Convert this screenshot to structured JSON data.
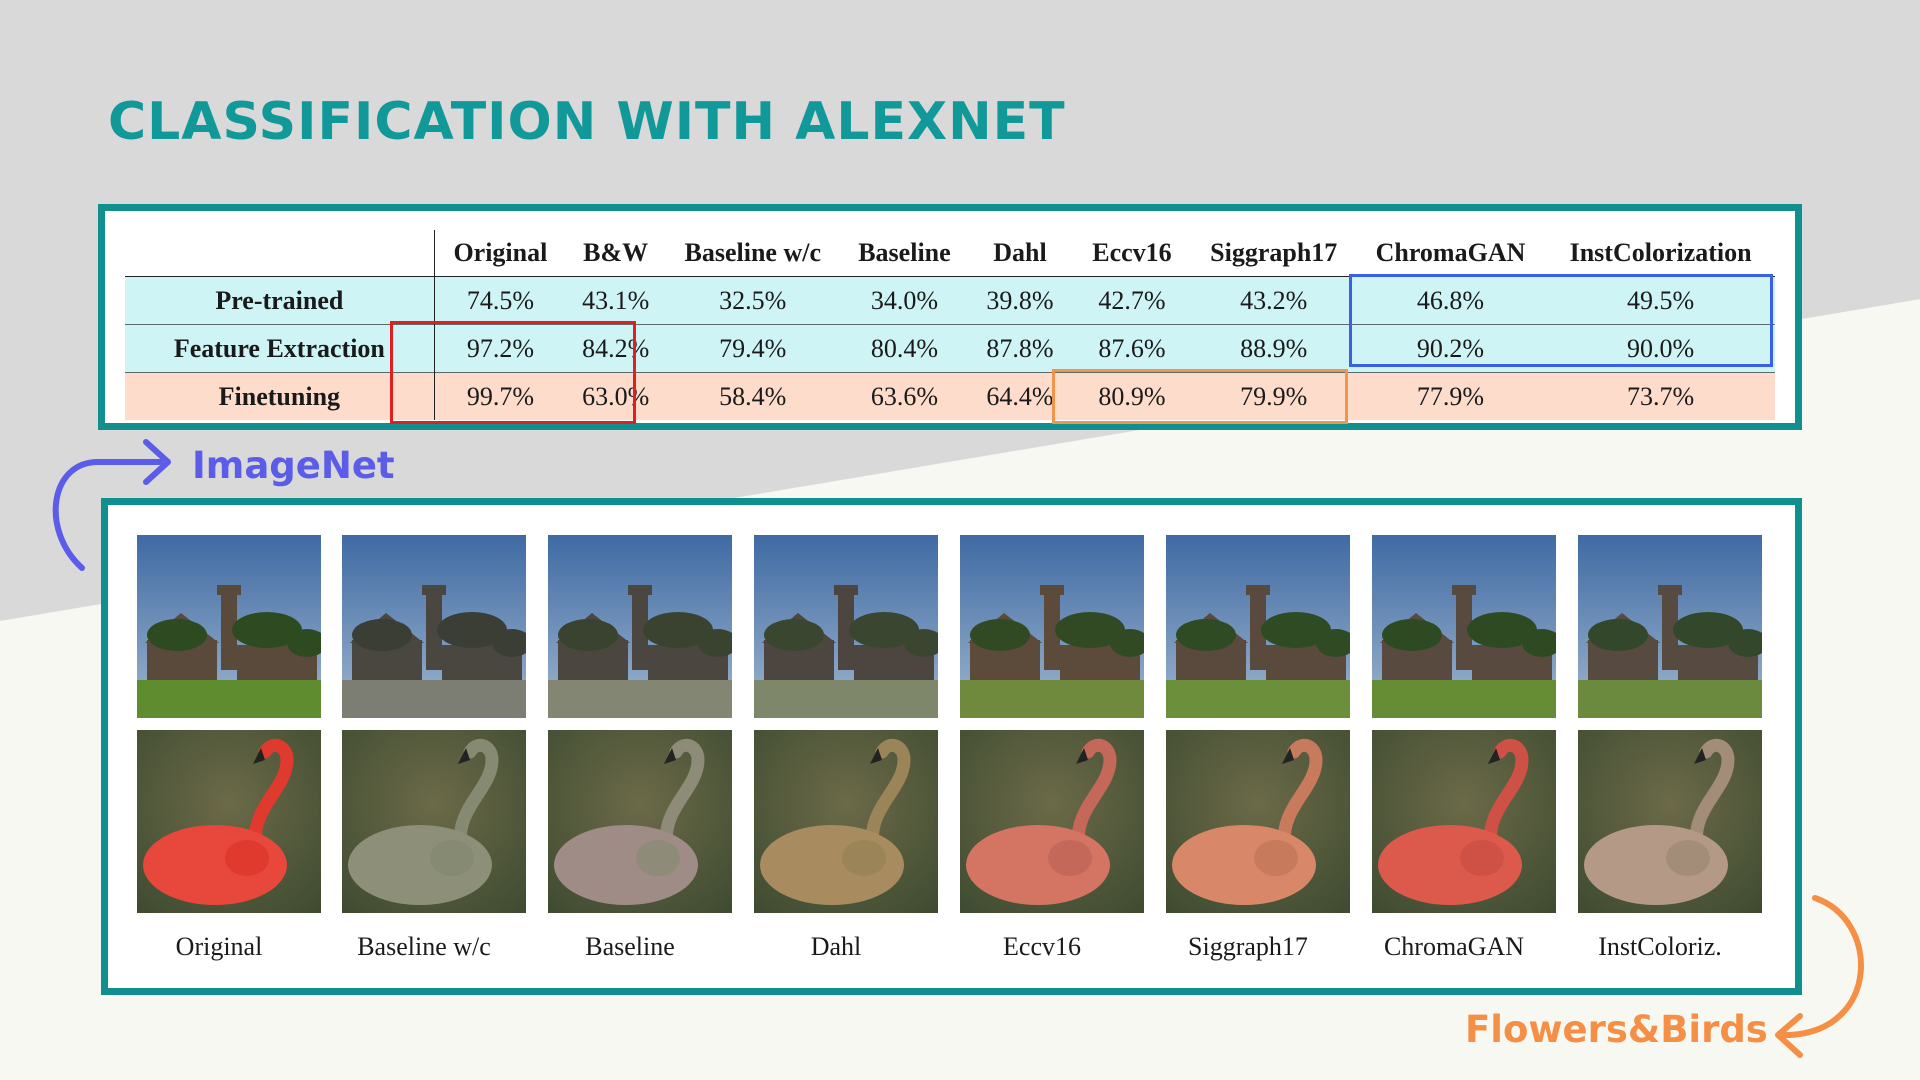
{
  "slide": {
    "title": "CLASSIFICATION WITH ALEXNET"
  },
  "table": {
    "columns": [
      "",
      "Original",
      "B&W",
      "Baseline w/c",
      "Baseline",
      "Dahl",
      "Eccv16",
      "Siggraph17",
      "ChromaGAN",
      "InstColorization"
    ],
    "rows": [
      {
        "label": "Pre-trained",
        "values": [
          "74.5%",
          "43.1%",
          "32.5%",
          "34.0%",
          "39.8%",
          "42.7%",
          "43.2%",
          "46.8%",
          "49.5%"
        ]
      },
      {
        "label": "Feature Extraction",
        "values": [
          "97.2%",
          "84.2%",
          "79.4%",
          "80.4%",
          "87.8%",
          "87.6%",
          "88.9%",
          "90.2%",
          "90.0%"
        ]
      },
      {
        "label": "Finetuning",
        "values": [
          "99.7%",
          "63.0%",
          "58.4%",
          "63.6%",
          "64.4%",
          "80.9%",
          "79.9%",
          "77.9%",
          "73.7%"
        ]
      }
    ]
  },
  "datasets": {
    "imagenet_label": "ImageNet",
    "flowers_label": "Flowers&Birds"
  },
  "gallery": {
    "captions": [
      "Original",
      "Baseline w/c",
      "Baseline",
      "Dahl",
      "Eccv16",
      "Siggraph17",
      "ChromaGAN",
      "InstColoriz."
    ],
    "images": {
      "castle": [
        {
          "sky": "#3f6aa3",
          "sky2": "#9fb6cf",
          "grass": "#5e8c2e",
          "bldg": "#5a4a3c",
          "tree": "#2d4a20"
        },
        {
          "sky": "#8c96a0",
          "sky2": "#b8bfc6",
          "grass": "#7c7e74",
          "bldg": "#4a4640",
          "tree": "#3a3e34"
        },
        {
          "sky": "#6d8aa6",
          "sky2": "#b8c2ca",
          "grass": "#828672",
          "bldg": "#4c4640",
          "tree": "#39432f"
        },
        {
          "sky": "#8893a0",
          "sky2": "#c0c6c9",
          "grass": "#7f876a",
          "bldg": "#4c4540",
          "tree": "#3b4631"
        },
        {
          "sky": "#5a78a8",
          "sky2": "#e9cb98",
          "grass": "#6f8a3c",
          "bldg": "#5c4a3a",
          "tree": "#314a24"
        },
        {
          "sky": "#4d75a6",
          "sky2": "#b0c4d4",
          "grass": "#6b8f3a",
          "bldg": "#5a4a3e",
          "tree": "#2f4b24"
        },
        {
          "sky": "#547ca9",
          "sky2": "#b5c8d6",
          "grass": "#678d34",
          "bldg": "#584a3e",
          "tree": "#2e4a22"
        },
        {
          "sky": "#5f7e9f",
          "sky2": "#b9c6cf",
          "grass": "#6c8a3e",
          "bldg": "#574a40",
          "tree": "#33482a"
        }
      ],
      "flamingo": [
        {
          "bg": "#3d4a30",
          "bg2": "#6b6a48",
          "bird": "#e8473c",
          "neck": "#e03a2e"
        },
        {
          "bg": "#3e463a",
          "bg2": "#5d6150",
          "bird": "#8e8f78",
          "neck": "#878a72"
        },
        {
          "bg": "#3f4739",
          "bg2": "#5e6352",
          "bird": "#a08c86",
          "neck": "#8e8b78"
        },
        {
          "bg": "#3a4a26",
          "bg2": "#59652f",
          "bird": "#a88c60",
          "neck": "#9a8458"
        },
        {
          "bg": "#2f4424",
          "bg2": "#4a6334",
          "bird": "#d47462",
          "neck": "#c4695a"
        },
        {
          "bg": "#344727",
          "bg2": "#546236",
          "bird": "#d88868",
          "neck": "#c77a5c"
        },
        {
          "bg": "#2c4a22",
          "bg2": "#4b6a30",
          "bird": "#db5a4c",
          "neck": "#cf5146"
        },
        {
          "bg": "#2f4528",
          "bg2": "#4d5e38",
          "bird": "#b49a86",
          "neck": "#a48d78"
        }
      ]
    }
  }
}
